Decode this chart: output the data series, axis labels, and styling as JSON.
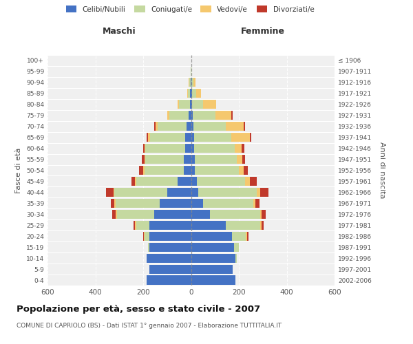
{
  "age_groups": [
    "0-4",
    "5-9",
    "10-14",
    "15-19",
    "20-24",
    "25-29",
    "30-34",
    "35-39",
    "40-44",
    "45-49",
    "50-54",
    "55-59",
    "60-64",
    "65-69",
    "70-74",
    "75-79",
    "80-84",
    "85-89",
    "90-94",
    "95-99",
    "100+"
  ],
  "birth_years": [
    "2002-2006",
    "1997-2001",
    "1992-1996",
    "1987-1991",
    "1982-1986",
    "1977-1981",
    "1972-1976",
    "1967-1971",
    "1962-1966",
    "1957-1961",
    "1952-1956",
    "1947-1951",
    "1942-1946",
    "1937-1941",
    "1932-1936",
    "1927-1931",
    "1922-1926",
    "1917-1921",
    "1912-1916",
    "1907-1911",
    "≤ 1906"
  ],
  "maschi": {
    "celibi": [
      185,
      175,
      185,
      175,
      175,
      175,
      155,
      130,
      100,
      55,
      30,
      30,
      25,
      25,
      20,
      10,
      5,
      3,
      2,
      0,
      0
    ],
    "coniugati": [
      0,
      0,
      0,
      5,
      20,
      55,
      155,
      185,
      220,
      175,
      165,
      160,
      165,
      145,
      120,
      80,
      45,
      10,
      5,
      1,
      0
    ],
    "vedovi": [
      0,
      0,
      0,
      0,
      3,
      5,
      5,
      5,
      5,
      5,
      5,
      5,
      5,
      10,
      8,
      8,
      5,
      3,
      2,
      0,
      0
    ],
    "divorziati": [
      0,
      0,
      0,
      0,
      3,
      5,
      15,
      15,
      30,
      15,
      18,
      10,
      5,
      5,
      5,
      0,
      0,
      0,
      0,
      0,
      0
    ]
  },
  "femmine": {
    "nubili": [
      185,
      175,
      185,
      180,
      170,
      145,
      80,
      50,
      30,
      25,
      15,
      15,
      12,
      12,
      10,
      8,
      5,
      3,
      2,
      0,
      0
    ],
    "coniugate": [
      0,
      0,
      5,
      20,
      60,
      145,
      210,
      210,
      245,
      200,
      185,
      175,
      170,
      155,
      135,
      95,
      45,
      18,
      8,
      1,
      0
    ],
    "vedove": [
      0,
      0,
      0,
      0,
      5,
      5,
      5,
      10,
      15,
      20,
      20,
      25,
      30,
      80,
      75,
      65,
      55,
      20,
      8,
      1,
      0
    ],
    "divorziate": [
      0,
      0,
      0,
      0,
      5,
      10,
      18,
      15,
      35,
      30,
      18,
      12,
      10,
      5,
      5,
      5,
      0,
      0,
      0,
      0,
      0
    ]
  },
  "colors": {
    "celibi": "#4472C4",
    "coniugati": "#C5D9A0",
    "vedovi": "#F5C86E",
    "divorziati": "#C0392B"
  },
  "xlim": 600,
  "title": "Popolazione per età, sesso e stato civile - 2007",
  "subtitle": "COMUNE DI CAPRIOLO (BS) - Dati ISTAT 1° gennaio 2007 - Elaborazione TUTTITALIA.IT",
  "ylabel": "Fasce di età",
  "ylabel_right": "Anni di nascita",
  "xlabel_left": "Maschi",
  "xlabel_right": "Femmine",
  "bg_color": "#F0F0F0",
  "grid_color": "#CCCCCC"
}
